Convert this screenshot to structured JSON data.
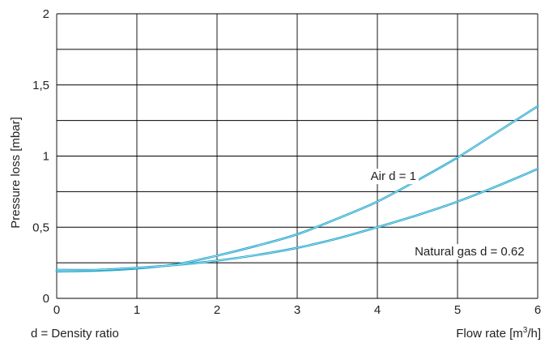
{
  "chart_data": {
    "type": "line",
    "title": "",
    "xlabel": "Flow rate [m³/h]",
    "xlabel_main": "Flow rate [m",
    "xlabel_sup": "3",
    "xlabel_tail": "/h]",
    "ylabel": "Pressure loss [mbar]",
    "footnote": "d = Density ratio",
    "xlim": [
      0,
      6
    ],
    "ylim": [
      0,
      2
    ],
    "x_ticks": [
      0,
      1,
      2,
      3,
      4,
      5,
      6
    ],
    "x_tick_labels": [
      "0",
      "1",
      "2",
      "3",
      "4",
      "5",
      "6"
    ],
    "y_ticks": [
      0,
      0.5,
      1,
      1.5,
      2
    ],
    "y_tick_labels": [
      "0",
      "0,5",
      "1",
      "1,5",
      "2"
    ],
    "y_grid_values": [
      0,
      0.25,
      0.5,
      0.75,
      1,
      1.25,
      1.5,
      1.75,
      2
    ],
    "grid": true,
    "line_color": "#1fa3c9",
    "series": [
      {
        "name": "Air d = 1",
        "x": [
          0,
          0.5,
          1,
          1.5,
          2,
          2.5,
          3,
          3.5,
          4,
          4.5,
          5,
          5.5,
          6
        ],
        "y": [
          0.19,
          0.195,
          0.21,
          0.24,
          0.3,
          0.37,
          0.45,
          0.56,
          0.68,
          0.83,
          0.99,
          1.17,
          1.35
        ]
      },
      {
        "name": "Natural gas d = 0.62",
        "x": [
          0,
          0.5,
          1,
          1.5,
          2,
          2.5,
          3,
          3.5,
          4,
          4.5,
          5,
          5.5,
          6
        ],
        "y": [
          0.2,
          0.2,
          0.215,
          0.235,
          0.265,
          0.305,
          0.355,
          0.42,
          0.5,
          0.585,
          0.68,
          0.79,
          0.91
        ]
      }
    ],
    "annotations": [
      {
        "text": "Air d = 1",
        "x": 4.2,
        "y": 0.86
      },
      {
        "text": "Natural gas d = 0.62",
        "x": 5.15,
        "y": 0.33
      }
    ]
  }
}
